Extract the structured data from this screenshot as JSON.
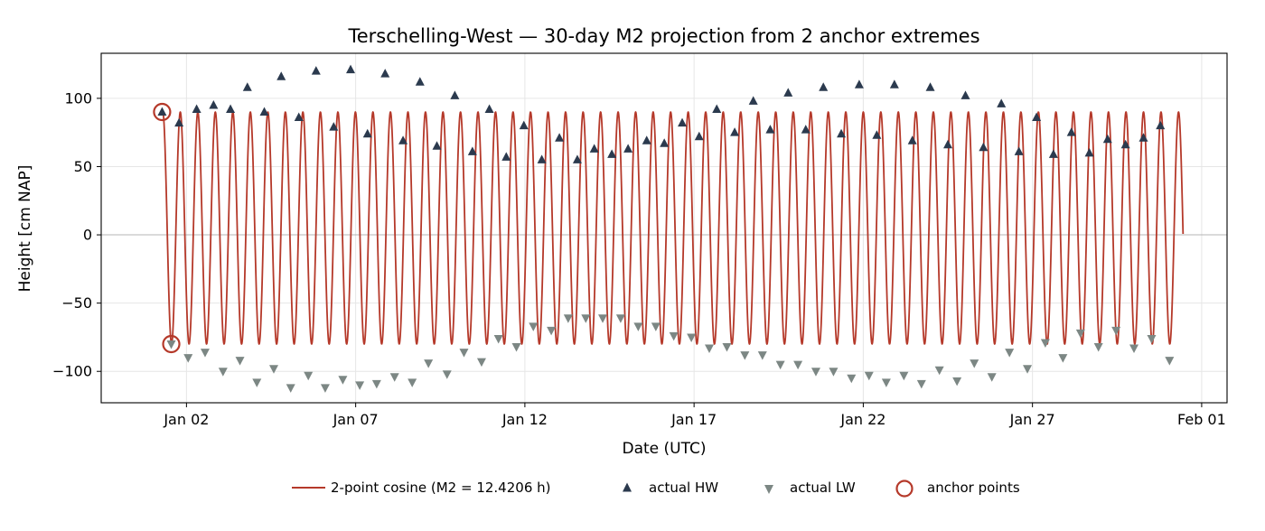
{
  "chart_data": {
    "type": "line",
    "title": "Terschelling-West — 30-day M2 projection from 2 anchor extremes",
    "xlabel": "Date (UTC)",
    "ylabel": "Height [cm NAP]",
    "x_ticks": [
      "Jan 02",
      "Jan 07",
      "Jan 12",
      "Jan 17",
      "Jan 22",
      "Jan 27",
      "Feb 01"
    ],
    "x_tick_days": [
      2,
      7,
      12,
      17,
      22,
      27,
      32
    ],
    "xlim": [
      -0.52,
      32.75
    ],
    "ylim": [
      -123,
      133
    ],
    "y_ticks": [
      100,
      50,
      0,
      -50,
      -100
    ],
    "y_tick_labels": [
      "100",
      "50",
      "0",
      "−50",
      "−100"
    ],
    "grid": true,
    "x_unit_note_hidden": false,
    "model": {
      "name": "2-point cosine (M2 = 12.4206 h)",
      "period_hours": 12.4206,
      "high": 90,
      "low": -80,
      "start_day": 1.3,
      "end_day": 31.45,
      "color": "#b5392a"
    },
    "series": [
      {
        "name": "actual HW",
        "marker": "triangle-up",
        "color": "#2b3a4e",
        "points": [
          [
            1.28,
            90
          ],
          [
            1.78,
            82
          ],
          [
            2.3,
            92
          ],
          [
            2.8,
            95
          ],
          [
            3.3,
            92
          ],
          [
            3.8,
            108
          ],
          [
            4.3,
            90
          ],
          [
            4.8,
            116
          ],
          [
            5.32,
            86
          ],
          [
            5.83,
            120
          ],
          [
            6.35,
            79
          ],
          [
            6.85,
            121
          ],
          [
            7.35,
            74
          ],
          [
            7.87,
            118
          ],
          [
            8.4,
            69
          ],
          [
            8.9,
            112
          ],
          [
            9.4,
            65
          ],
          [
            9.93,
            102
          ],
          [
            10.45,
            61
          ],
          [
            10.95,
            92
          ],
          [
            11.45,
            57
          ],
          [
            11.97,
            80
          ],
          [
            12.5,
            55
          ],
          [
            13.02,
            71
          ],
          [
            13.55,
            55
          ],
          [
            14.05,
            63
          ],
          [
            14.57,
            59
          ],
          [
            15.05,
            63
          ],
          [
            15.6,
            69
          ],
          [
            16.12,
            67
          ],
          [
            16.65,
            82
          ],
          [
            17.15,
            72
          ],
          [
            17.67,
            92
          ],
          [
            18.2,
            75
          ],
          [
            18.75,
            98
          ],
          [
            19.25,
            77
          ],
          [
            19.78,
            104
          ],
          [
            20.3,
            77
          ],
          [
            20.82,
            108
          ],
          [
            21.35,
            74
          ],
          [
            21.88,
            110
          ],
          [
            22.4,
            73
          ],
          [
            22.92,
            110
          ],
          [
            23.45,
            69
          ],
          [
            23.98,
            108
          ],
          [
            24.5,
            66
          ],
          [
            25.02,
            102
          ],
          [
            25.55,
            64
          ],
          [
            26.08,
            96
          ],
          [
            26.6,
            61
          ],
          [
            27.12,
            86
          ],
          [
            27.62,
            59
          ],
          [
            28.15,
            75
          ],
          [
            28.68,
            60
          ],
          [
            29.22,
            70
          ],
          [
            29.75,
            66
          ],
          [
            30.28,
            71
          ],
          [
            30.78,
            80
          ]
        ]
      },
      {
        "name": "actual LW",
        "marker": "triangle-down",
        "color": "#7c8784",
        "points": [
          [
            1.55,
            -80
          ],
          [
            2.05,
            -90
          ],
          [
            2.55,
            -86
          ],
          [
            3.08,
            -100
          ],
          [
            3.58,
            -92
          ],
          [
            4.08,
            -108
          ],
          [
            4.58,
            -98
          ],
          [
            5.08,
            -112
          ],
          [
            5.6,
            -103
          ],
          [
            6.1,
            -112
          ],
          [
            6.62,
            -106
          ],
          [
            7.12,
            -110
          ],
          [
            7.62,
            -109
          ],
          [
            8.15,
            -104
          ],
          [
            8.67,
            -108
          ],
          [
            9.15,
            -94
          ],
          [
            9.7,
            -102
          ],
          [
            10.2,
            -86
          ],
          [
            10.72,
            -93
          ],
          [
            11.22,
            -76
          ],
          [
            11.75,
            -82
          ],
          [
            12.25,
            -67
          ],
          [
            12.78,
            -70
          ],
          [
            13.28,
            -61
          ],
          [
            13.8,
            -61
          ],
          [
            14.3,
            -61
          ],
          [
            14.83,
            -61
          ],
          [
            15.35,
            -67
          ],
          [
            15.87,
            -67
          ],
          [
            16.4,
            -74
          ],
          [
            16.92,
            -75
          ],
          [
            17.45,
            -83
          ],
          [
            17.97,
            -82
          ],
          [
            18.5,
            -88
          ],
          [
            19.02,
            -88
          ],
          [
            19.55,
            -95
          ],
          [
            20.07,
            -95
          ],
          [
            20.6,
            -100
          ],
          [
            21.12,
            -100
          ],
          [
            21.65,
            -105
          ],
          [
            22.17,
            -103
          ],
          [
            22.68,
            -108
          ],
          [
            23.2,
            -103
          ],
          [
            23.72,
            -109
          ],
          [
            24.25,
            -99
          ],
          [
            24.77,
            -107
          ],
          [
            25.28,
            -94
          ],
          [
            25.8,
            -104
          ],
          [
            26.32,
            -86
          ],
          [
            26.85,
            -98
          ],
          [
            27.38,
            -79
          ],
          [
            27.9,
            -90
          ],
          [
            28.42,
            -72
          ],
          [
            28.95,
            -82
          ],
          [
            29.47,
            -70
          ],
          [
            30.0,
            -83
          ],
          [
            30.52,
            -76
          ],
          [
            31.05,
            -92
          ]
        ]
      },
      {
        "name": "anchor points",
        "marker": "circle-open",
        "color": "#b5392a",
        "points": [
          [
            1.28,
            90
          ],
          [
            1.55,
            -80
          ]
        ]
      }
    ],
    "legend": {
      "placement": "bottom-center",
      "items": [
        {
          "label": "2-point cosine (M2 = 12.4206 h)",
          "symbol": "line",
          "color": "#b5392a"
        },
        {
          "label": "actual HW",
          "symbol": "triangle-up",
          "color": "#2b3a4e"
        },
        {
          "label": "actual LW",
          "symbol": "triangle-down",
          "color": "#7c8784"
        },
        {
          "label": "anchor points",
          "symbol": "circle-open",
          "color": "#b5392a"
        }
      ]
    }
  }
}
